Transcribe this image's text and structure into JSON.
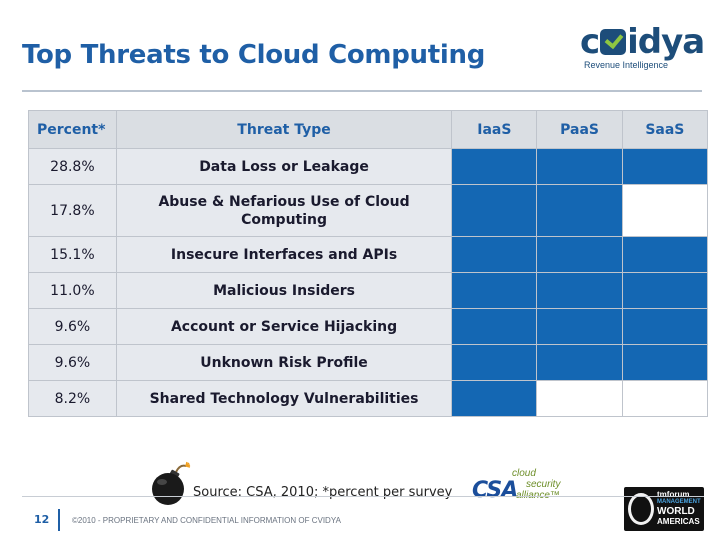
{
  "slide": {
    "title": "Top Threats to Cloud Computing",
    "page_number": "12",
    "copyright": "©2010 - PROPRIETARY AND CONFIDENTIAL INFORMATION OF CVIDYA",
    "source": "Source: CSA, 2010; *percent per survey"
  },
  "logo": {
    "word_left": "c",
    "word_right": "idya",
    "tagline": "Revenue Intelligence",
    "accent": "#8ec641",
    "color": "#1d4d7a"
  },
  "table": {
    "headers": {
      "percent": "Percent*",
      "threat": "Threat Type",
      "iaas": "IaaS",
      "paas": "PaaS",
      "saas": "SaaS"
    },
    "fill_color": "#1467b3",
    "rows": [
      {
        "percent": "28.8%",
        "threat": "Data Loss or Leakage",
        "iaas": true,
        "paas": true,
        "saas": true
      },
      {
        "percent": "17.8%",
        "threat": "Abuse & Nefarious Use of Cloud Computing",
        "iaas": true,
        "paas": true,
        "saas": false
      },
      {
        "percent": "15.1%",
        "threat": "Insecure Interfaces and APIs",
        "iaas": true,
        "paas": true,
        "saas": true
      },
      {
        "percent": "11.0%",
        "threat": "Malicious Insiders",
        "iaas": true,
        "paas": true,
        "saas": true
      },
      {
        "percent": "9.6%",
        "threat": "Account or Service Hijacking",
        "iaas": true,
        "paas": true,
        "saas": true
      },
      {
        "percent": "9.6%",
        "threat": "Unknown Risk Profile",
        "iaas": true,
        "paas": true,
        "saas": true
      },
      {
        "percent": "8.2%",
        "threat": "Shared Technology Vulnerabilities",
        "iaas": true,
        "paas": false,
        "saas": false
      }
    ]
  },
  "csa_logo": {
    "abbr": "CSA",
    "line1": "cloud",
    "line2": "security",
    "line3": "alliance™"
  },
  "tmf_logo": {
    "line1": "tmforum",
    "line2": "MANAGEMENT",
    "line3": "WORLD",
    "line4": "AMERICAS"
  },
  "icons": {
    "bomb": "bomb-icon"
  }
}
